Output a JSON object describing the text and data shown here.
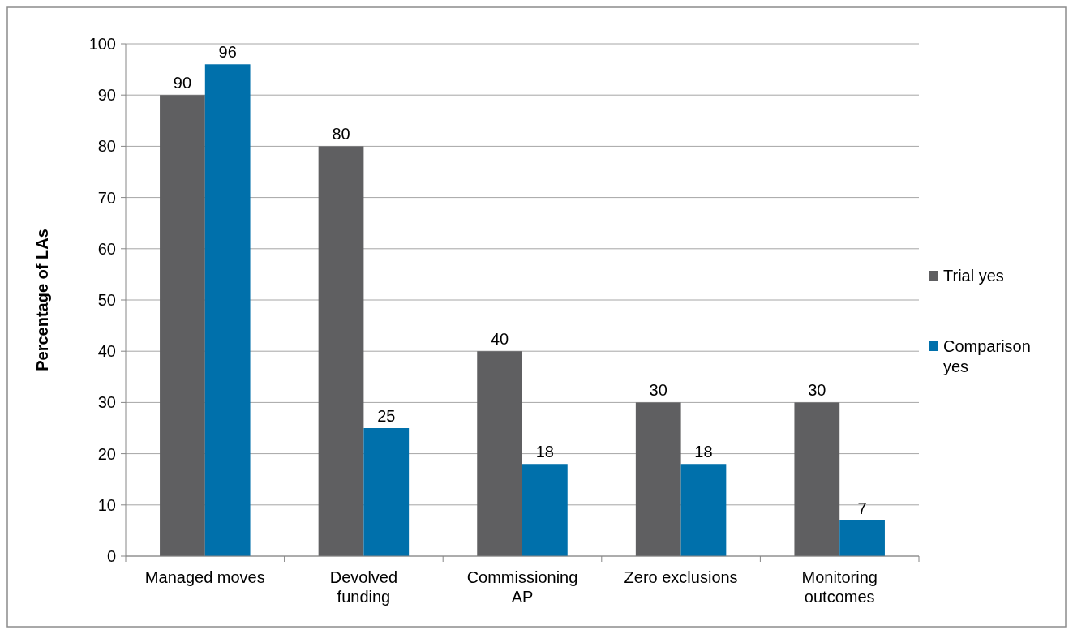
{
  "chart_data": {
    "type": "bar",
    "ylabel": "Percentage of LAs",
    "categories": [
      "Managed moves",
      "Devolved funding",
      "Commissioning AP",
      "Zero exclusions",
      "Monitoring outcomes"
    ],
    "series": [
      {
        "name": "Trial yes",
        "color": "#5f5f61",
        "values": [
          90,
          80,
          40,
          30,
          30
        ]
      },
      {
        "name": "Comparison yes",
        "color": "#0070ab",
        "values": [
          96,
          25,
          18,
          18,
          7
        ]
      }
    ],
    "ylim": [
      0,
      100
    ],
    "yticks": [
      0,
      10,
      20,
      30,
      40,
      50,
      60,
      70,
      80,
      90,
      100
    ],
    "grid": "y",
    "legend": "right",
    "data_labels": true
  }
}
